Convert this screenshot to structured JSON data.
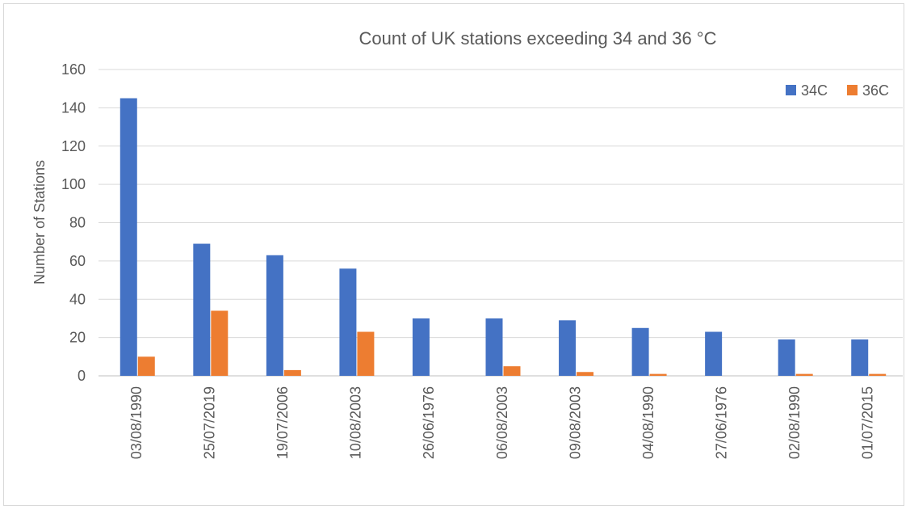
{
  "chart_data": {
    "type": "bar",
    "title": "Count of UK stations exceeding 34 and 36 °C",
    "xlabel": "",
    "ylabel": "Number of Stations",
    "ylim": [
      0,
      160
    ],
    "yticks": [
      0,
      20,
      40,
      60,
      80,
      100,
      120,
      140,
      160
    ],
    "grid": true,
    "legend_position": "top-right",
    "categories": [
      "03/08/1990",
      "25/07/2019",
      "19/07/2006",
      "10/08/2003",
      "26/06/1976",
      "06/08/2003",
      "09/08/2003",
      "04/08/1990",
      "27/06/1976",
      "02/08/1990",
      "01/07/2015"
    ],
    "series": [
      {
        "name": "34C",
        "color": "#4472c4",
        "values": [
          145,
          69,
          63,
          56,
          30,
          30,
          29,
          25,
          23,
          19,
          19
        ]
      },
      {
        "name": "36C",
        "color": "#ed7d31",
        "values": [
          10,
          34,
          3,
          23,
          0,
          5,
          2,
          1,
          0,
          1,
          1
        ]
      }
    ]
  }
}
